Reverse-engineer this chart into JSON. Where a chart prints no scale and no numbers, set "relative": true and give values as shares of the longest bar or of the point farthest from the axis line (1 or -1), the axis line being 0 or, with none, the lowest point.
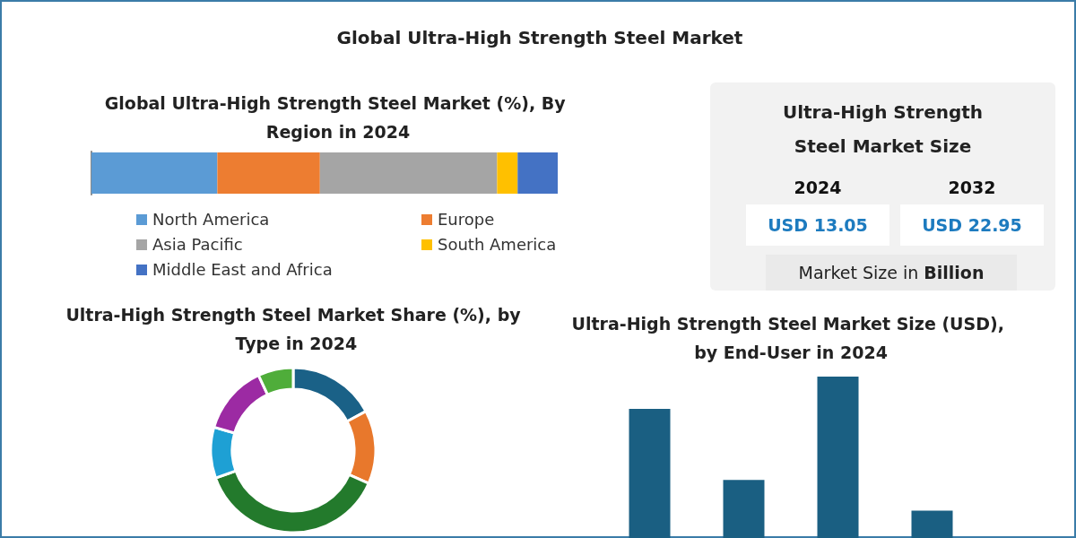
{
  "chart_data": [
    {
      "type": "other",
      "title": "Global Ultra-High Strength Steel Market"
    },
    {
      "type": "bar",
      "title": "Global Ultra-High Strength Steel Market (%), By Region in 2024",
      "orientation": "horizontal",
      "stacked": true,
      "relative": true,
      "legend": "bottom",
      "categories": [
        null
      ],
      "series": [
        {
          "name": "North America",
          "color": "#5b9bd5",
          "values": [
            0.27
          ]
        },
        {
          "name": "Europe",
          "color": "#ed7d31",
          "values": [
            0.22
          ]
        },
        {
          "name": "Asia Pacific",
          "color": "#a5a5a5",
          "values": [
            0.38
          ]
        },
        {
          "name": "South America",
          "color": "#ffc000",
          "values": [
            0.044
          ]
        },
        {
          "name": "Middle East and Africa",
          "color": "#4472c4",
          "values": [
            0.086
          ]
        }
      ]
    },
    {
      "type": "other",
      "title": "Ultra-High Strength Steel Market Size",
      "annotations": [
        "2024",
        "2032",
        "USD 13.05",
        "USD 22.95",
        "Market Size in Billion"
      ]
    },
    {
      "type": "donut",
      "title": "Ultra-High Strength Steel Market Share (%), by Type in 2024",
      "categories": [
        null,
        null,
        null,
        null,
        null,
        null
      ],
      "values": [
        17.2,
        14.4,
        37.9,
        10.0,
        13.6,
        6.9
      ],
      "colors": [
        "#1a6187",
        "#e8782c",
        "#237a2c",
        "#1ea0d4",
        "#9c2aa3",
        "#4fad3a"
      ]
    },
    {
      "type": "bar",
      "title": "Ultra-High Strength Steel Market Size (USD), by End-User in 2024",
      "relative": true,
      "categories": [
        null,
        null,
        null,
        null
      ],
      "values": [
        0.8,
        0.36,
        1,
        0.17
      ],
      "color": "#1a5f82"
    }
  ]
}
